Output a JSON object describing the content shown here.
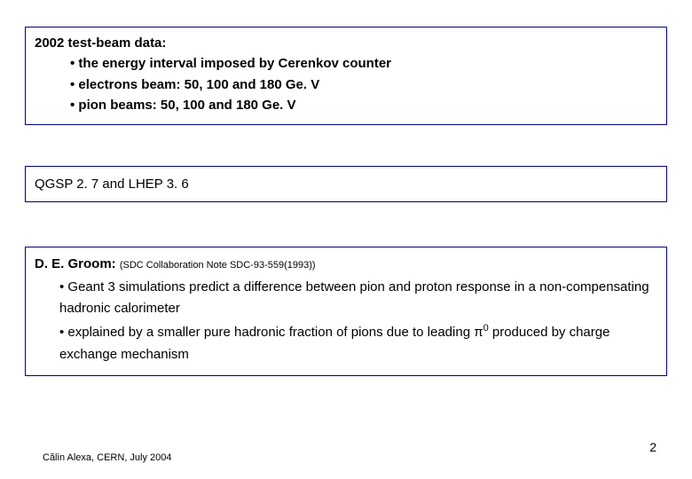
{
  "box1": {
    "title": "2002 test-beam data:",
    "bullets": [
      "• the energy interval imposed by Cerenkov counter",
      "• electrons beam: 50, 100 and 180 Ge. V",
      "• pion beams: 50, 100 and 180 Ge. V"
    ]
  },
  "box2": {
    "text": "QGSP 2. 7 and LHEP 3. 6"
  },
  "box3": {
    "author": "D. E. Groom: ",
    "note": "(SDC Collaboration Note SDC-93-559(1993))",
    "bullets": [
      "• Geant 3 simulations predict a difference between pion and proton response in a non-compensating hadronic calorimeter",
      "• explained by a smaller pure hadronic fraction of pions due to leading π",
      " produced by charge exchange mechanism"
    ],
    "superscript": "0"
  },
  "footer": "Călin Alexa, CERN, July 2004",
  "page": "2",
  "colors": {
    "border": "#000080",
    "text": "#000000",
    "background": "#ffffff"
  }
}
